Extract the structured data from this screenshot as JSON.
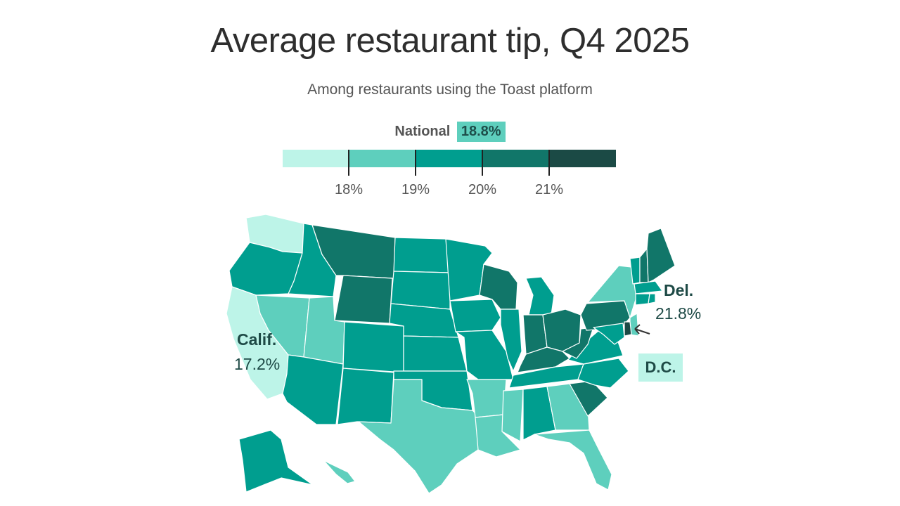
{
  "title": "Average restaurant tip, Q4 2025",
  "subtitle": "Among restaurants using the Toast platform",
  "national": {
    "label": "National",
    "value": "18.8%",
    "color": "#5ecfbd"
  },
  "legend": {
    "colors": [
      "#bdf4e8",
      "#5ecfbd",
      "#009e8f",
      "#117669",
      "#1b4a45"
    ],
    "ticks": [
      "18%",
      "19%",
      "20%",
      "21%"
    ]
  },
  "annotations": {
    "california": {
      "name": "Calif.",
      "value": "17.2%"
    },
    "delaware": {
      "name": "Del.",
      "value": "21.8%"
    },
    "dc": {
      "name": "D.C.",
      "color": "#bdf4e8"
    }
  },
  "palette": {
    "l1": "#bdf4e8",
    "l2": "#5ecfbd",
    "l3": "#009e8f",
    "l4": "#117669",
    "l5": "#1b4a45"
  },
  "state_colors": {
    "WA": "l1",
    "OR": "l3",
    "CA": "l1",
    "ID": "l3",
    "NV": "l2",
    "MT": "l4",
    "WY": "l4",
    "UT": "l2",
    "AZ": "l3",
    "CO": "l3",
    "NM": "l3",
    "ND": "l3",
    "SD": "l3",
    "NE": "l3",
    "KS": "l3",
    "OK": "l3",
    "TX": "l2",
    "MN": "l3",
    "IA": "l3",
    "MO": "l3",
    "AR": "l2",
    "LA": "l2",
    "WI": "l4",
    "IL": "l3",
    "MI": "l3",
    "IN": "l4",
    "OH": "l4",
    "KY": "l4",
    "TN": "l3",
    "MS": "l2",
    "AL": "l3",
    "GA": "l2",
    "FL": "l2",
    "SC": "l4",
    "NC": "l3",
    "VA": "l3",
    "WV": "l4",
    "PA": "l4",
    "NY": "l2",
    "VT": "l3",
    "NH": "l4",
    "ME": "l4",
    "MA": "l3",
    "CT": "l3",
    "RI": "l3",
    "NJ": "l2",
    "DE": "l5",
    "MD": "l3",
    "AK": "l3",
    "HI": "l2"
  }
}
